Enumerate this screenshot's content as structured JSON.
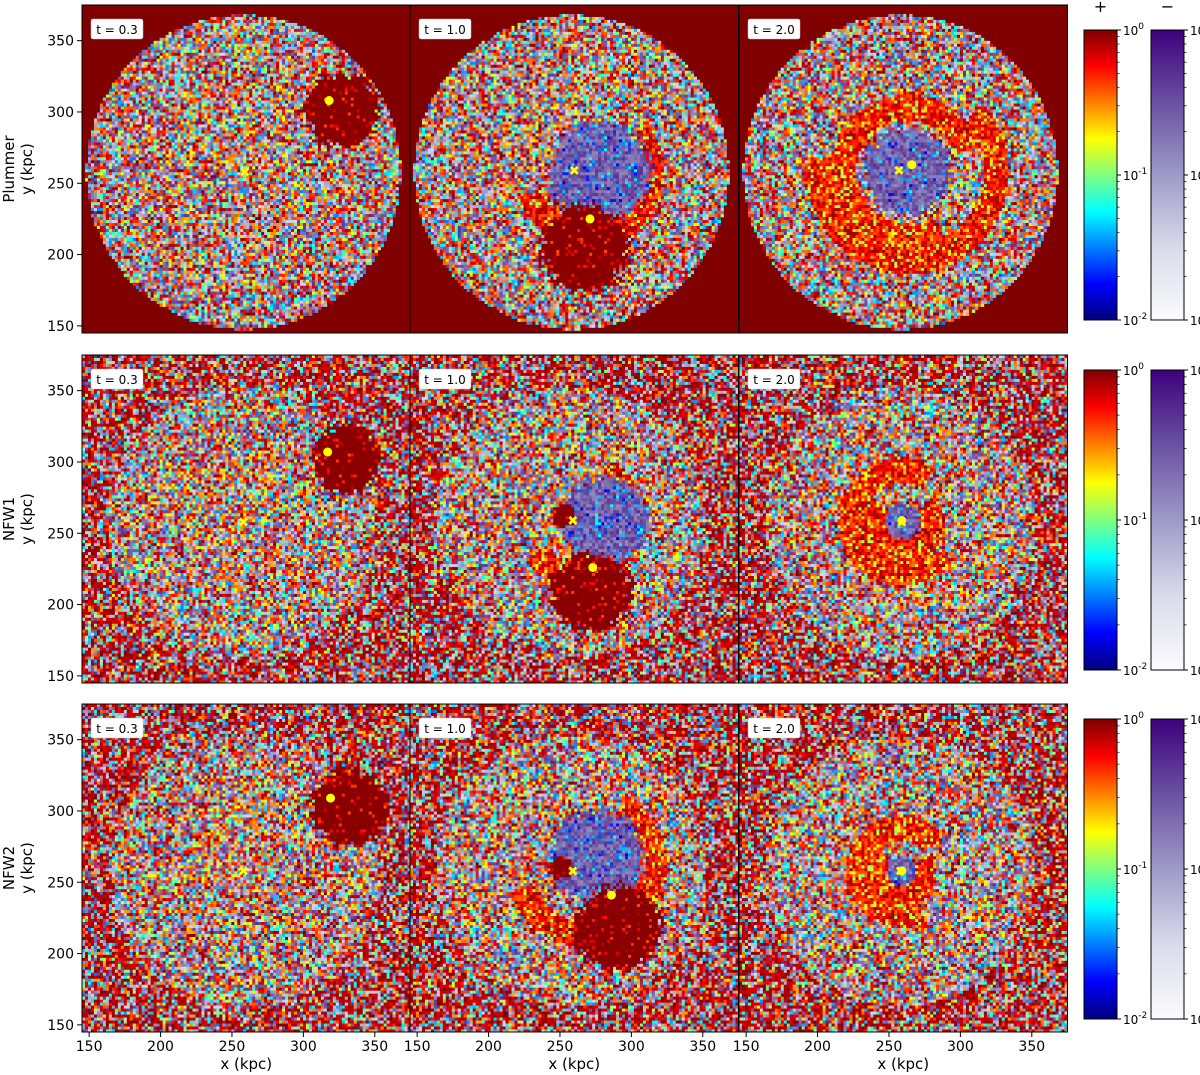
{
  "chart_data": {
    "type": "heatmap",
    "rows": [
      {
        "name": "Plummer",
        "ylabel": "y (kpc)",
        "panels": [
          {
            "time_label": "t = 0.3",
            "circle_edge": true,
            "mask_color": "#800000",
            "red_blobs": [
              {
                "x": 327,
                "y": 302,
                "r": 26
              }
            ],
            "purple_blobs": [],
            "arms": [],
            "markers": [
              {
                "shape": "x",
                "x": 259,
                "y": 258
              },
              {
                "shape": "dot",
                "x": 318,
                "y": 308
              }
            ]
          },
          {
            "time_label": "t = 1.0",
            "circle_edge": true,
            "mask_color": "#800000",
            "red_blobs": [
              {
                "x": 268,
                "y": 205,
                "r": 30
              }
            ],
            "purple_blobs": [
              {
                "x": 278,
                "y": 258,
                "r": 35
              }
            ],
            "arms": [
              {
                "cx": 270,
                "cy": 258,
                "r": 44,
                "start": 200,
                "end": 40
              }
            ],
            "markers": [
              {
                "shape": "x",
                "x": 260,
                "y": 259
              },
              {
                "shape": "dot",
                "x": 271,
                "y": 225
              }
            ]
          },
          {
            "time_label": "t = 2.0",
            "circle_edge": true,
            "mask_color": "#800000",
            "red_blobs": [],
            "purple_blobs": [
              {
                "x": 263,
                "y": 258,
                "r": 30
              }
            ],
            "arms": [
              {
                "cx": 263,
                "cy": 258,
                "r": 62,
                "start": 170,
                "end": 40
              },
              {
                "cx": 263,
                "cy": 258,
                "r": 45,
                "start": 20,
                "end": 300
              }
            ],
            "markers": [
              {
                "shape": "x",
                "x": 257,
                "y": 259
              },
              {
                "shape": "dot",
                "x": 266,
                "y": 263
              }
            ]
          }
        ]
      },
      {
        "name": "NFW1",
        "ylabel": "y (kpc)",
        "panels": [
          {
            "time_label": "t = 0.3",
            "circle_edge": false,
            "red_blobs": [
              {
                "x": 330,
                "y": 302,
                "r": 24
              }
            ],
            "purple_blobs": [],
            "arms": [],
            "markers": [
              {
                "shape": "x",
                "x": 258,
                "y": 258
              },
              {
                "shape": "dot",
                "x": 317,
                "y": 307
              }
            ]
          },
          {
            "time_label": "t = 1.0",
            "circle_edge": false,
            "red_blobs": [
              {
                "x": 272,
                "y": 208,
                "r": 28
              },
              {
                "x": 252,
                "y": 262,
                "r": 8
              }
            ],
            "purple_blobs": [
              {
                "x": 282,
                "y": 260,
                "r": 30
              }
            ],
            "arms": [
              {
                "cx": 262,
                "cy": 260,
                "r": 38,
                "start": 220,
                "end": 60
              }
            ],
            "markers": [
              {
                "shape": "x",
                "x": 259,
                "y": 259
              },
              {
                "shape": "dot",
                "x": 273,
                "y": 226
              }
            ]
          },
          {
            "time_label": "t = 2.0",
            "circle_edge": false,
            "red_blobs": [],
            "purple_blobs": [
              {
                "x": 260,
                "y": 258,
                "r": 12
              }
            ],
            "arms": [
              {
                "cx": 260,
                "cy": 258,
                "r": 20,
                "start": 140,
                "end": 40
              },
              {
                "cx": 260,
                "cy": 258,
                "r": 36,
                "start": 60,
                "end": 320
              }
            ],
            "markers": [
              {
                "shape": "x",
                "x": 259,
                "y": 258
              },
              {
                "shape": "dot",
                "x": 259,
                "y": 259
              }
            ]
          }
        ]
      },
      {
        "name": "NFW2",
        "ylabel": "y (kpc)",
        "panels": [
          {
            "time_label": "t = 0.3",
            "circle_edge": false,
            "red_blobs": [
              {
                "x": 332,
                "y": 303,
                "r": 27
              }
            ],
            "purple_blobs": [],
            "arms": [],
            "markers": [
              {
                "shape": "x",
                "x": 258,
                "y": 258
              },
              {
                "shape": "dot",
                "x": 319,
                "y": 309
              }
            ]
          },
          {
            "time_label": "t = 1.0",
            "circle_edge": false,
            "red_blobs": [
              {
                "x": 290,
                "y": 218,
                "r": 30
              },
              {
                "x": 250,
                "y": 260,
                "r": 8
              }
            ],
            "purple_blobs": [
              {
                "x": 276,
                "y": 268,
                "r": 33
              }
            ],
            "arms": [
              {
                "cx": 268,
                "cy": 262,
                "r": 48,
                "start": 200,
                "end": 60
              }
            ],
            "markers": [
              {
                "shape": "x",
                "x": 259,
                "y": 258
              },
              {
                "shape": "dot",
                "x": 286,
                "y": 241
              }
            ]
          },
          {
            "time_label": "t = 2.0",
            "circle_edge": false,
            "red_blobs": [],
            "purple_blobs": [
              {
                "x": 259,
                "y": 258,
                "r": 10
              }
            ],
            "arms": [
              {
                "cx": 259,
                "cy": 258,
                "r": 16,
                "start": 150,
                "end": 30
              },
              {
                "cx": 259,
                "cy": 258,
                "r": 30,
                "start": 40,
                "end": 300
              }
            ],
            "markers": [
              {
                "shape": "x",
                "x": 258,
                "y": 258
              },
              {
                "shape": "dot",
                "x": 259,
                "y": 258
              }
            ]
          }
        ]
      }
    ],
    "xlabel": "x (kpc)",
    "xlim": [
      145,
      375
    ],
    "ylim": [
      145,
      375
    ],
    "xticks": [
      150,
      200,
      250,
      300,
      350
    ],
    "yticks": [
      150,
      200,
      250,
      300,
      350
    ],
    "colorbars": [
      {
        "sign": "+",
        "colormap": "jet",
        "colors": [
          "#00007f",
          "#0000ff",
          "#007fff",
          "#00ffff",
          "#7fff7f",
          "#ffff00",
          "#ff7f00",
          "#ff0000",
          "#7f0000"
        ],
        "ticks": [
          "10^0",
          "10^-1",
          "10^-2"
        ]
      },
      {
        "sign": "−",
        "colormap": "purples",
        "colors": [
          "#fcfbfd",
          "#dadaeb",
          "#9e9ac8",
          "#6a51a3",
          "#3f007d"
        ],
        "ticks": [
          "10^0",
          "10^-1",
          "10^-2"
        ]
      }
    ],
    "colorbar_scale": "log",
    "colorbar_range": [
      0.01,
      1
    ],
    "marker_color": "#ffff00"
  }
}
